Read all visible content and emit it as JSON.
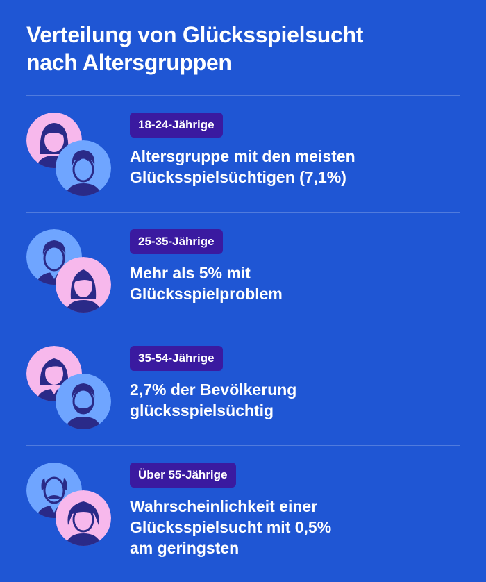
{
  "title": {
    "line1": "Verteilung von Glücksspielsucht",
    "line2": "nach Altersgruppen"
  },
  "colors": {
    "background": "#1f56d4",
    "badge": "#3a1aa0",
    "female_circle": "#f7b8ec",
    "male_circle": "#6fa5ff",
    "silhouette": "#2a2a88"
  },
  "groups": [
    {
      "label": "18-24-Jährige",
      "line1": "Altersgruppe mit den meisten",
      "line2": "Glücksspielsüchtigen (7,1%)",
      "line3": "",
      "icons": [
        "young-woman-icon",
        "young-man-icon"
      ]
    },
    {
      "label": "25-35-Jährige",
      "line1": "Mehr als 5% mit",
      "line2": "Glücksspielproblem",
      "line3": "",
      "icons": [
        "man-icon",
        "woman-icon"
      ]
    },
    {
      "label": "35-54-Jährige",
      "line1": "2,7% der Bevölkerung",
      "line2": "glücksspielsüchtig",
      "line3": "",
      "icons": [
        "woman-icon",
        "bearded-man-icon"
      ]
    },
    {
      "label": "Über 55-Jährige",
      "line1": "Wahrscheinlichkeit einer",
      "line2": "Glücksspielsucht mit 0,5%",
      "line3": "am geringsten",
      "icons": [
        "older-man-icon",
        "older-woman-icon"
      ]
    }
  ]
}
